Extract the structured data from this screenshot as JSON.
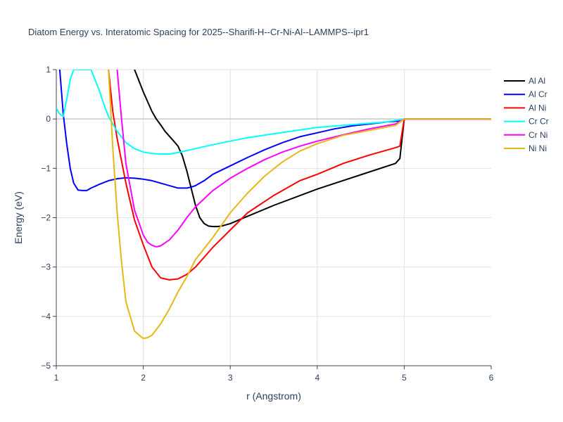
{
  "chart_data": {
    "type": "line",
    "title": "Diatom Energy vs. Interatomic Spacing for 2025--Sharifi-H--Cr-Ni-Al--LAMMPS--ipr1",
    "xlabel": "r (Angstrom)",
    "ylabel": "Energy (eV)",
    "xlim": [
      1,
      6
    ],
    "ylim": [
      -5,
      1
    ],
    "x_ticks": [
      1,
      2,
      3,
      4,
      5,
      6
    ],
    "x_tick_labels": [
      "1",
      "2",
      "3",
      "4",
      "5",
      "6"
    ],
    "y_ticks": [
      -5,
      -4,
      -3,
      -2,
      -1,
      0,
      1
    ],
    "y_tick_labels": [
      "−5",
      "−4",
      "−3",
      "−2",
      "−1",
      "0",
      "1"
    ],
    "grid": true,
    "legend_position": "top-right",
    "series": [
      {
        "name": "Al Al",
        "color": "#000000",
        "x": [
          1.9,
          2.0,
          2.1,
          2.15,
          2.2,
          2.25,
          2.3,
          2.35,
          2.4,
          2.45,
          2.5,
          2.55,
          2.6,
          2.65,
          2.7,
          2.75,
          2.8,
          2.85,
          2.9,
          3.0,
          3.2,
          3.5,
          4.0,
          4.5,
          4.9,
          4.95,
          5.0,
          6.0
        ],
        "y": [
          1.0,
          0.55,
          0.15,
          0.0,
          -0.12,
          -0.25,
          -0.35,
          -0.45,
          -0.55,
          -0.75,
          -1.05,
          -1.4,
          -1.75,
          -2.0,
          -2.12,
          -2.17,
          -2.18,
          -2.18,
          -2.17,
          -2.12,
          -1.97,
          -1.75,
          -1.42,
          -1.13,
          -0.9,
          -0.8,
          0.0,
          0.0
        ]
      },
      {
        "name": "Al Cr",
        "color": "#0000ff",
        "x": [
          1.04,
          1.08,
          1.12,
          1.16,
          1.2,
          1.25,
          1.3,
          1.35,
          1.4,
          1.5,
          1.6,
          1.7,
          1.8,
          1.9,
          2.0,
          2.1,
          2.2,
          2.3,
          2.4,
          2.5,
          2.55,
          2.6,
          2.7,
          2.8,
          3.0,
          3.2,
          3.4,
          3.6,
          3.8,
          4.0,
          4.2,
          4.4,
          4.6,
          4.8,
          4.95,
          5.0,
          6.0
        ],
        "y": [
          1.0,
          0.1,
          -0.5,
          -1.0,
          -1.3,
          -1.44,
          -1.45,
          -1.45,
          -1.4,
          -1.32,
          -1.25,
          -1.21,
          -1.19,
          -1.2,
          -1.22,
          -1.25,
          -1.3,
          -1.35,
          -1.4,
          -1.4,
          -1.38,
          -1.35,
          -1.25,
          -1.12,
          -0.95,
          -0.78,
          -0.62,
          -0.48,
          -0.36,
          -0.28,
          -0.2,
          -0.14,
          -0.1,
          -0.06,
          -0.04,
          0.0,
          0.0
        ]
      },
      {
        "name": "Al Ni",
        "color": "#ff0000",
        "x": [
          1.6,
          1.65,
          1.7,
          1.75,
          1.8,
          1.9,
          2.0,
          2.1,
          2.2,
          2.3,
          2.4,
          2.5,
          2.6,
          2.8,
          3.0,
          3.2,
          3.5,
          3.8,
          4.0,
          4.3,
          4.6,
          4.9,
          4.95,
          5.0,
          6.0
        ],
        "y": [
          1.0,
          0.15,
          -0.4,
          -0.85,
          -1.3,
          -2.05,
          -2.55,
          -3.0,
          -3.22,
          -3.26,
          -3.24,
          -3.15,
          -3.0,
          -2.6,
          -2.25,
          -1.9,
          -1.55,
          -1.25,
          -1.12,
          -0.9,
          -0.73,
          -0.58,
          -0.55,
          0.0,
          0.0
        ]
      },
      {
        "name": "Cr Cr",
        "color": "#00ffff",
        "x": [
          1.0,
          1.04,
          1.08,
          1.12,
          1.16,
          1.2,
          1.4,
          1.5,
          1.55,
          1.6,
          1.7,
          1.8,
          1.9,
          2.0,
          2.1,
          2.2,
          2.3,
          2.4,
          2.6,
          2.8,
          3.0,
          3.2,
          3.5,
          4.0,
          4.5,
          4.8,
          5.0,
          6.0
        ],
        "y": [
          0.22,
          0.1,
          0.05,
          0.4,
          0.8,
          1.0,
          1.0,
          0.55,
          0.28,
          0.05,
          -0.25,
          -0.48,
          -0.6,
          -0.67,
          -0.7,
          -0.71,
          -0.71,
          -0.68,
          -0.6,
          -0.52,
          -0.45,
          -0.38,
          -0.3,
          -0.17,
          -0.1,
          -0.06,
          0.0,
          0.0
        ]
      },
      {
        "name": "Cr Ni",
        "color": "#ff00ff",
        "x": [
          1.7,
          1.75,
          1.8,
          1.9,
          2.0,
          2.05,
          2.1,
          2.15,
          2.2,
          2.3,
          2.4,
          2.5,
          2.6,
          2.8,
          3.0,
          3.2,
          3.4,
          3.6,
          3.8,
          4.0,
          4.3,
          4.6,
          4.9,
          5.0,
          6.0
        ],
        "y": [
          1.0,
          0.0,
          -0.9,
          -1.85,
          -2.35,
          -2.5,
          -2.56,
          -2.59,
          -2.57,
          -2.45,
          -2.25,
          -2.0,
          -1.78,
          -1.45,
          -1.2,
          -1.0,
          -0.82,
          -0.67,
          -0.55,
          -0.45,
          -0.32,
          -0.2,
          -0.1,
          0.0,
          0.0
        ]
      },
      {
        "name": "Ni Ni",
        "color": "#e6b817",
        "x": [
          1.6,
          1.65,
          1.7,
          1.75,
          1.8,
          1.9,
          2.0,
          2.05,
          2.1,
          2.2,
          2.3,
          2.4,
          2.5,
          2.6,
          2.8,
          3.0,
          3.2,
          3.4,
          3.6,
          3.8,
          4.0,
          4.3,
          4.6,
          4.9,
          5.0,
          6.0
        ],
        "y": [
          1.0,
          -0.6,
          -1.9,
          -2.9,
          -3.7,
          -4.3,
          -4.45,
          -4.43,
          -4.38,
          -4.15,
          -3.85,
          -3.5,
          -3.2,
          -2.85,
          -2.4,
          -1.9,
          -1.5,
          -1.15,
          -0.87,
          -0.65,
          -0.5,
          -0.33,
          -0.23,
          -0.13,
          0.0,
          0.0
        ]
      }
    ]
  }
}
